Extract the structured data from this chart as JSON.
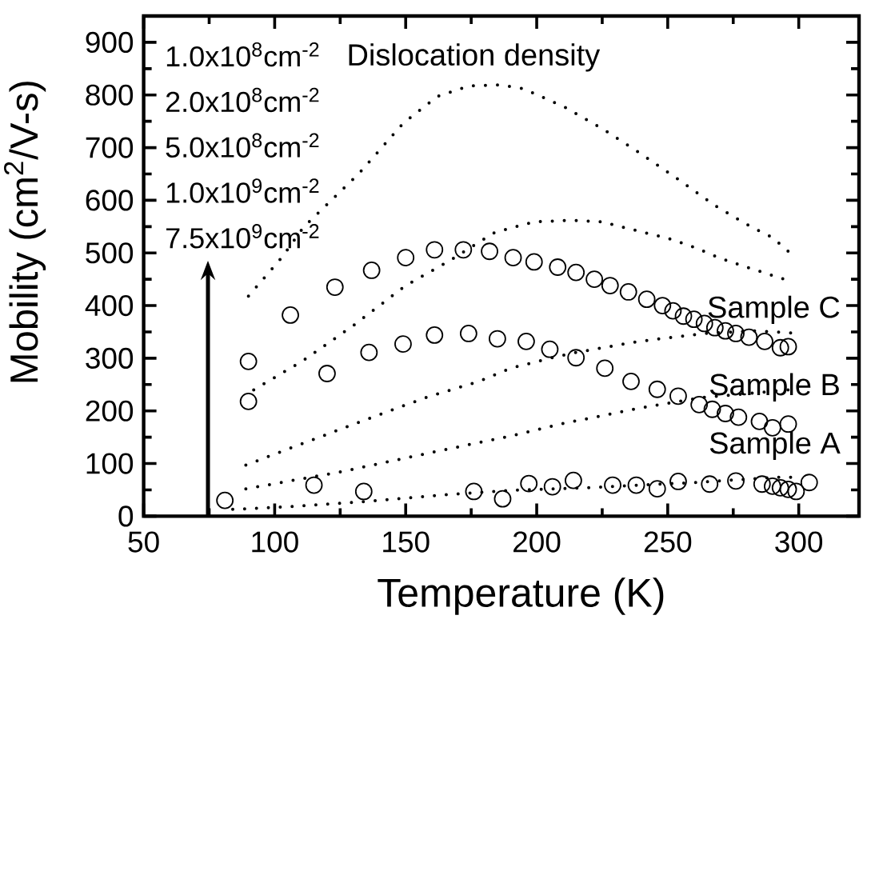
{
  "chart_data": {
    "type": "scatter",
    "xlabel": "Temperature (K)",
    "ylabel": "Mobility (cm$^{2}$/V-s)",
    "annotations": [
      "Dislocation density",
      "1.0x10$^{8}$cm$^{-2}$",
      "2.0x10$^{8}$cm$^{-2}$",
      "5.0x10$^{8}$cm$^{-2}$",
      "1.0x10$^{9}$cm$^{-2}$",
      "7.5x10$^{9}$cm$^{-2}$"
    ],
    "xlim": [
      50,
      323
    ],
    "ylim": [
      0,
      950
    ],
    "xticks": [
      50,
      {
        "value": 75,
        "label": null
      },
      100,
      {
        "value": 125,
        "label": null
      },
      150,
      {
        "value": 175,
        "label": null
      },
      200,
      {
        "value": 225,
        "label": null
      },
      250,
      {
        "value": 275,
        "label": null
      },
      300
    ],
    "yticks": [
      0,
      {
        "value": 50,
        "label": null
      },
      100,
      {
        "value": 150,
        "label": null
      },
      200,
      {
        "value": 250,
        "label": null
      },
      300,
      {
        "value": 350,
        "label": null
      },
      400,
      {
        "value": 450,
        "label": null
      },
      500,
      {
        "value": 550,
        "label": null
      },
      600,
      {
        "value": 650,
        "label": null
      },
      700,
      {
        "value": 750,
        "label": null
      },
      800,
      {
        "value": 850,
        "label": null
      },
      900
    ],
    "marker": "circle",
    "legend": "right",
    "series": [
      {
        "type": "line",
        "color": "#000000",
        "line_style": "dotted",
        "marker": "none",
        "x": [
          90,
          103,
          111,
          132,
          149,
          162,
          174,
          186,
          195,
          211,
          225,
          239,
          254,
          268,
          282,
          290,
          296
        ],
        "values": [
          418,
          493,
          549,
          650,
          746,
          797,
          817,
          819,
          812,
          776,
          736,
          691,
          640,
          590,
          549,
          529,
          503
        ]
      },
      {
        "type": "line",
        "color": "#000000",
        "line_style": "dotted",
        "marker": "none",
        "x": [
          92,
          111,
          130,
          150,
          166,
          184,
          199,
          213,
          225,
          240,
          250,
          260,
          270,
          280,
          294
        ],
        "values": [
          240,
          296,
          362,
          438,
          483,
          539,
          559,
          562,
          559,
          540,
          528,
          511,
          490,
          473,
          451
        ]
      },
      {
        "type": "line",
        "color": "#000000",
        "line_style": "dotted",
        "marker": "none",
        "x": [
          89,
          100,
          125,
          158,
          178,
          190,
          206,
          215,
          239,
          264,
          284,
          297
        ],
        "values": [
          97,
          118,
          165,
          226,
          256,
          281,
          301,
          311,
          332,
          347,
          352,
          348
        ]
      },
      {
        "type": "line",
        "color": "#000000",
        "line_style": "dotted",
        "marker": "none",
        "x": [
          89,
          125,
          158,
          178,
          190,
          209,
          239,
          264,
          274,
          296
        ],
        "values": [
          52,
          84,
          119,
          140,
          152,
          175,
          205,
          226,
          230,
          240
        ]
      },
      {
        "type": "line",
        "color": "#000000",
        "line_style": "dotted",
        "marker": "none",
        "x": [
          84,
          105,
          135,
          166,
          190,
          219,
          260,
          292,
          297
        ],
        "values": [
          13,
          18,
          28,
          41,
          49,
          54,
          64,
          74,
          74
        ]
      },
      {
        "name": "Sample A",
        "color": "#000000",
        "x": [
          81,
          115,
          134,
          176,
          187,
          197,
          206,
          214,
          229,
          238,
          246,
          254,
          266,
          276,
          286,
          290,
          293,
          296,
          299,
          304
        ],
        "values": [
          30,
          59,
          47,
          47,
          33,
          62,
          56,
          68,
          59,
          59,
          52,
          66,
          61,
          67,
          61,
          57,
          54,
          51,
          47,
          64
        ]
      },
      {
        "name": "Sample B",
        "color": "#000000",
        "x": [
          90,
          120,
          136,
          149,
          161,
          174,
          185,
          196,
          205,
          215,
          226,
          236,
          246,
          254,
          262,
          267,
          272,
          277,
          285,
          290,
          296
        ],
        "values": [
          218,
          271,
          311,
          327,
          344,
          347,
          337,
          332,
          317,
          301,
          281,
          256,
          241,
          228,
          212,
          203,
          195,
          188,
          180,
          168,
          175
        ]
      },
      {
        "name": "Sample C",
        "color": "#000000",
        "x": [
          90,
          106,
          123,
          137,
          150,
          161,
          172,
          182,
          191,
          199,
          208,
          215,
          222,
          228,
          235,
          242,
          248,
          252,
          256,
          260,
          264,
          268,
          272,
          276,
          281,
          287,
          293,
          296
        ],
        "values": [
          294,
          382,
          435,
          467,
          491,
          506,
          506,
          503,
          491,
          483,
          473,
          463,
          450,
          438,
          426,
          412,
          400,
          390,
          380,
          374,
          366,
          358,
          352,
          347,
          340,
          332,
          320,
          322
        ]
      }
    ]
  }
}
